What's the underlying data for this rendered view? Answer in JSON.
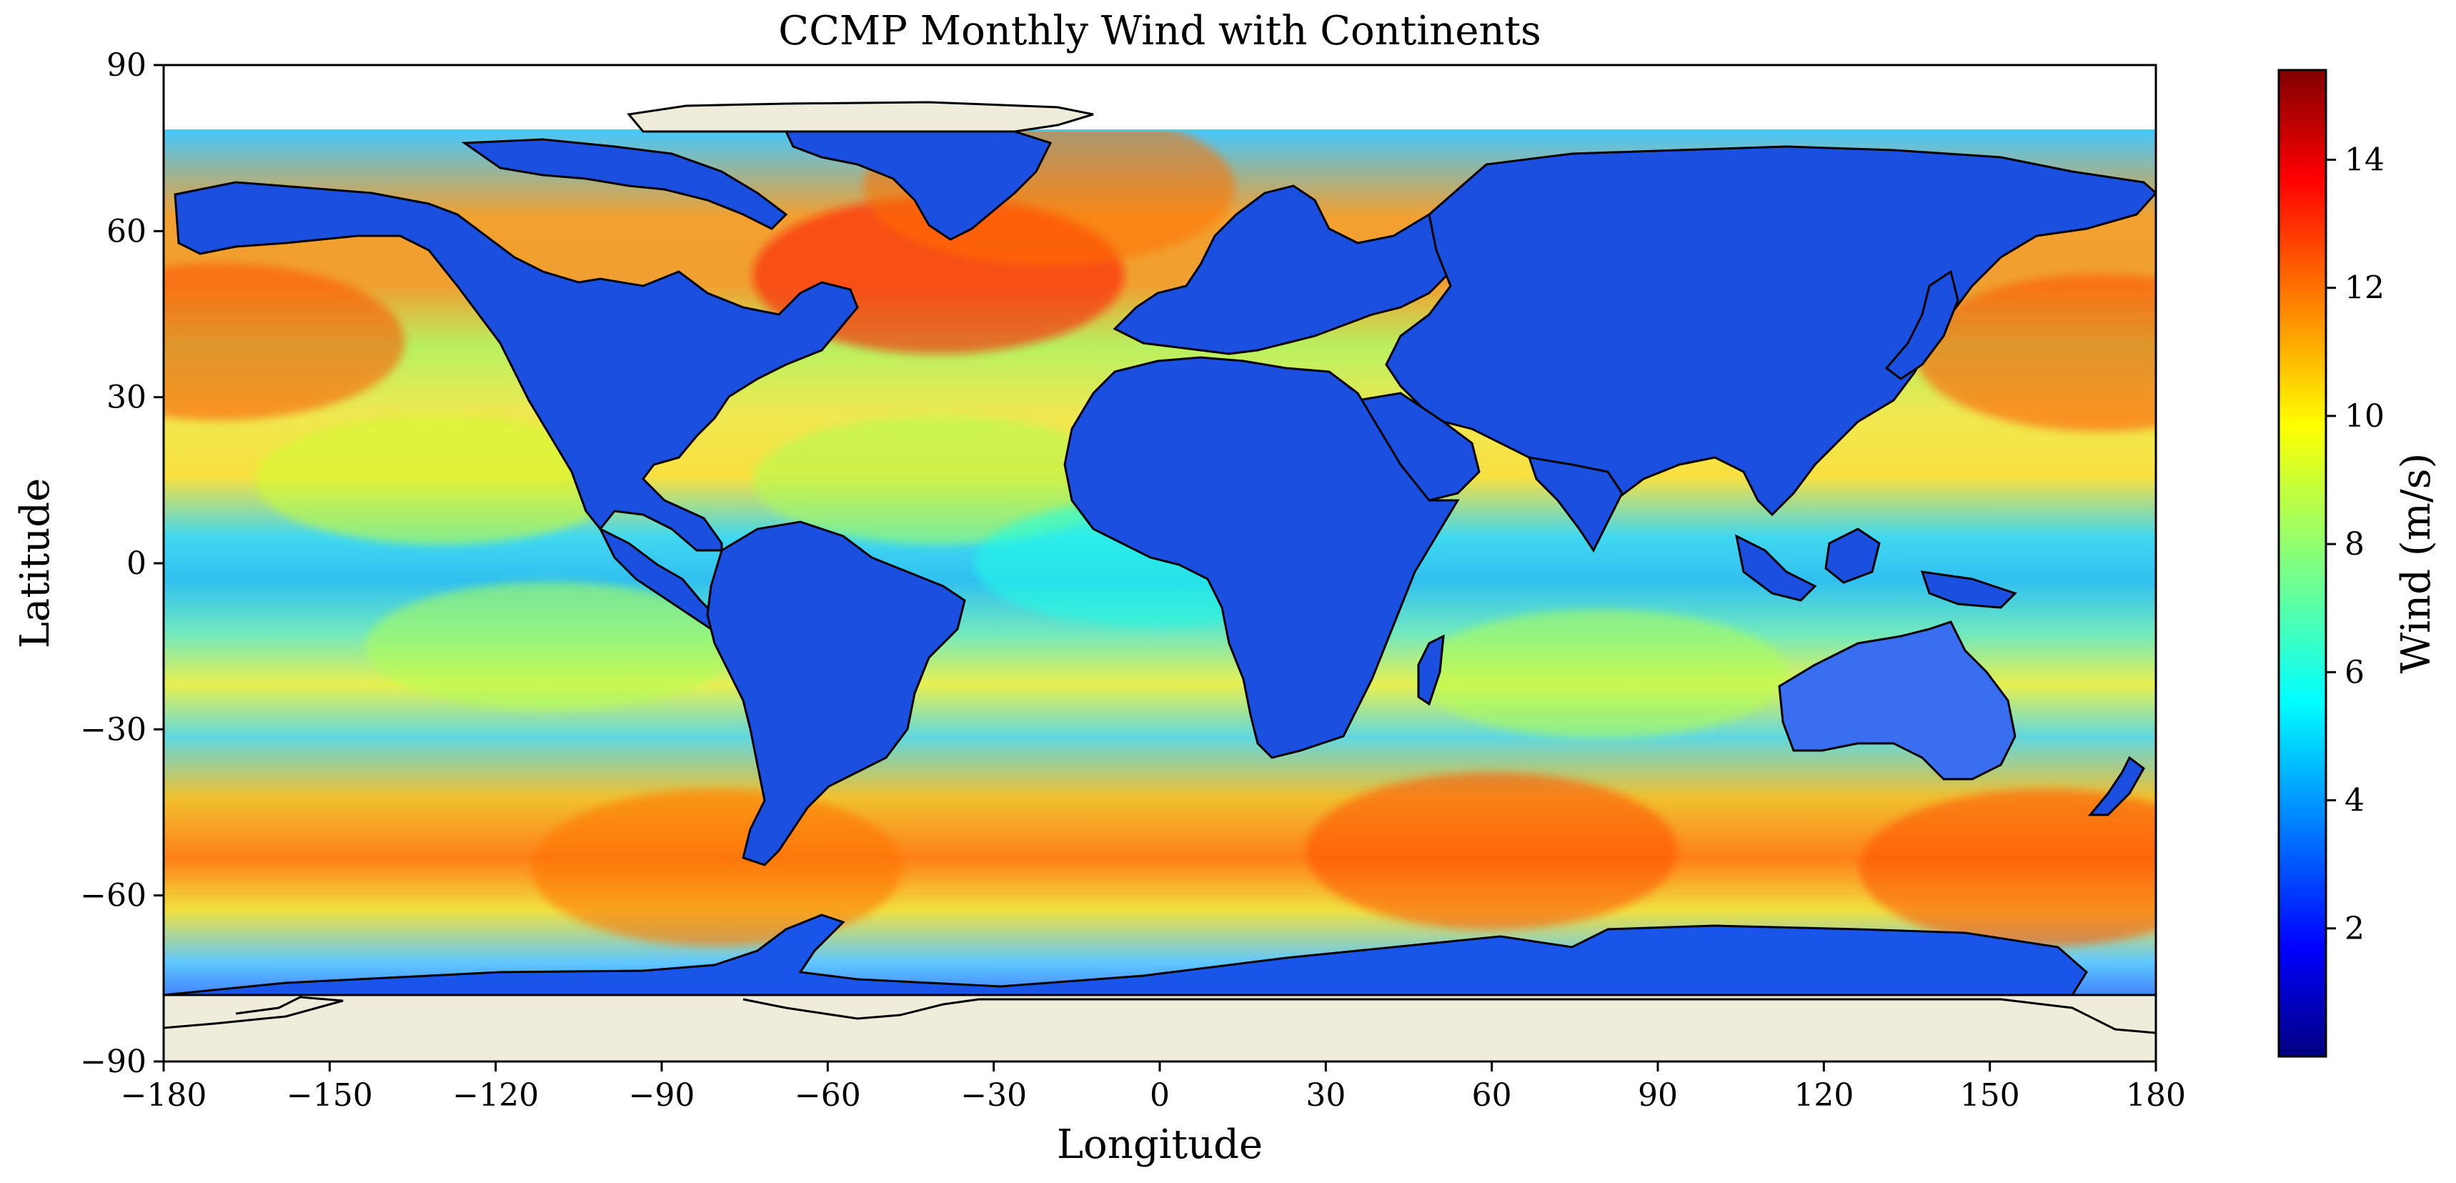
{
  "figure": {
    "title": "CCMP Monthly Wind with Continents",
    "xlabel": "Longitude",
    "ylabel": "Latitude",
    "colorbar_label": "Wind (m/s)"
  },
  "map_data": {
    "projection": "PlateCarree",
    "xlim": [
      -180,
      180
    ],
    "ylim": [
      -90,
      90
    ],
    "xticks": [
      -180,
      -150,
      -120,
      -90,
      -60,
      -30,
      0,
      30,
      60,
      90,
      120,
      150,
      180
    ],
    "yticks": [
      -90,
      -60,
      -30,
      0,
      30,
      60,
      90
    ],
    "data_lat_range": [
      -78.375,
      78.375
    ],
    "colormap": "jet",
    "colorbar_range": [
      0,
      15.4
    ],
    "colorbar_ticks": [
      2,
      4,
      6,
      8,
      10,
      12,
      14
    ],
    "land_color": "#efecdc",
    "coastline_color": "#000000",
    "wind_fields": [
      {
        "name": "north-pacific-storm-track",
        "lon": -170,
        "lat": 40,
        "value": 12.5
      },
      {
        "name": "north-pacific-east",
        "lon": 170,
        "lat": 38,
        "value": 12.5
      },
      {
        "name": "north-atlantic-storm-track",
        "lon": -40,
        "lat": 52,
        "value": 13.5
      },
      {
        "name": "iceland-sea",
        "lon": -20,
        "lat": 68,
        "value": 12
      },
      {
        "name": "southern-ocean-atlantic",
        "lon": -80,
        "lat": -55,
        "value": 12
      },
      {
        "name": "southern-ocean-indian",
        "lon": 60,
        "lat": -52,
        "value": 12.5
      },
      {
        "name": "southern-ocean-pacific",
        "lon": 160,
        "lat": -55,
        "value": 12.5
      },
      {
        "name": "trade-winds-north-pacific",
        "lon": -130,
        "lat": 15,
        "value": 9
      },
      {
        "name": "trade-winds-north-atlantic",
        "lon": -40,
        "lat": 15,
        "value": 8.5
      },
      {
        "name": "trade-winds-south-pacific",
        "lon": -110,
        "lat": -15,
        "value": 8.5
      },
      {
        "name": "indian-ocean-trades",
        "lon": 80,
        "lat": -20,
        "value": 8.5
      },
      {
        "name": "tropical-ocean",
        "lon": 0,
        "lat": 0,
        "value": 6
      },
      {
        "name": "land",
        "lon": 20,
        "lat": 10,
        "value": 3
      }
    ]
  }
}
